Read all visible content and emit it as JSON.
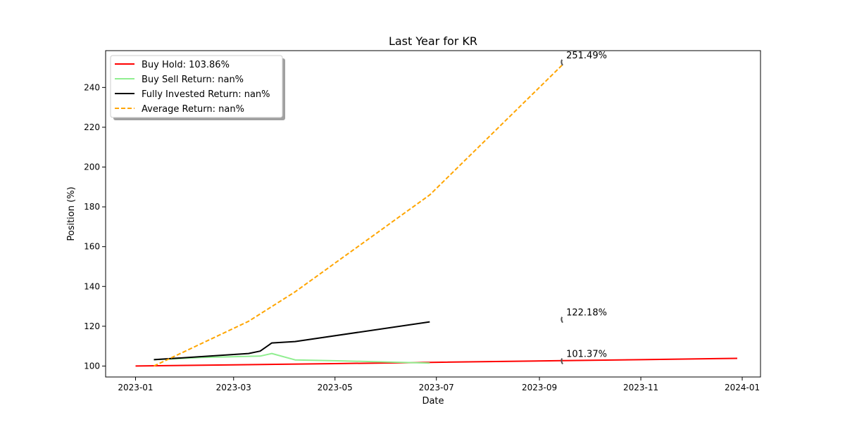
{
  "chart_data": {
    "type": "line",
    "title": "Last Year for KR",
    "xlabel": "Date",
    "ylabel": "Position (%)",
    "xlim": [
      "2022-12-14",
      "2024-01-12"
    ],
    "ylim": [
      94.5,
      258.5
    ],
    "x_ticks": [
      "2023-01-01",
      "2023-03-01",
      "2023-05-01",
      "2023-07-01",
      "2023-09-01",
      "2023-11-01",
      "2024-01-01"
    ],
    "x_tick_labels": [
      "2023-01",
      "2023-03",
      "2023-05",
      "2023-07",
      "2023-09",
      "2023-11",
      "2024-01"
    ],
    "y_ticks": [
      100,
      120,
      140,
      160,
      180,
      200,
      220,
      240
    ],
    "y_tick_labels": [
      "100",
      "120",
      "140",
      "160",
      "180",
      "200",
      "220",
      "240"
    ],
    "grid": false,
    "legend_position": "top-left",
    "series": [
      {
        "name": "Buy Hold: 103.86%",
        "color": "#ff0000",
        "style": "solid",
        "points": [
          {
            "x": "2023-01-01",
            "y": 100.0
          },
          {
            "x": "2023-03-01",
            "y": 100.6
          },
          {
            "x": "2023-05-01",
            "y": 101.2
          },
          {
            "x": "2023-07-01",
            "y": 101.9
          },
          {
            "x": "2023-09-15",
            "y": 102.7
          },
          {
            "x": "2023-11-01",
            "y": 103.2
          },
          {
            "x": "2023-12-29",
            "y": 103.86
          }
        ]
      },
      {
        "name": "Buy Sell Return: nan%",
        "color": "#90ee90",
        "style": "solid",
        "points": [
          {
            "x": "2023-01-12",
            "y": 103.2
          },
          {
            "x": "2023-02-10",
            "y": 104.3
          },
          {
            "x": "2023-03-10",
            "y": 104.9
          },
          {
            "x": "2023-03-17",
            "y": 105.0
          },
          {
            "x": "2023-03-24",
            "y": 106.3
          },
          {
            "x": "2023-04-07",
            "y": 103.1
          },
          {
            "x": "2023-05-05",
            "y": 102.6
          },
          {
            "x": "2023-06-02",
            "y": 102.0
          },
          {
            "x": "2023-06-27",
            "y": 101.5
          }
        ]
      },
      {
        "name": "Fully Invested Return: nan%",
        "color": "#000000",
        "style": "solid",
        "points": [
          {
            "x": "2023-01-12",
            "y": 103.2
          },
          {
            "x": "2023-03-10",
            "y": 106.3
          },
          {
            "x": "2023-03-17",
            "y": 107.5
          },
          {
            "x": "2023-03-24",
            "y": 111.6
          },
          {
            "x": "2023-04-07",
            "y": 112.3
          },
          {
            "x": "2023-06-27",
            "y": 122.2
          }
        ]
      },
      {
        "name": "Average Return: nan%",
        "color": "#ffa500",
        "style": "dashed",
        "points": [
          {
            "x": "2023-01-12",
            "y": 100.0
          },
          {
            "x": "2023-03-10",
            "y": 122.5
          },
          {
            "x": "2023-04-07",
            "y": 137.3
          },
          {
            "x": "2023-06-27",
            "y": 186.0
          },
          {
            "x": "2023-09-15",
            "y": 251.49
          }
        ]
      }
    ],
    "annotations": [
      {
        "text": "251.49%",
        "x": "2023-09-15",
        "y": 251.49
      },
      {
        "text": "122.18%",
        "x": "2023-09-15",
        "y": 122.18
      },
      {
        "text": "101.37%",
        "x": "2023-09-15",
        "y": 101.37
      }
    ]
  }
}
